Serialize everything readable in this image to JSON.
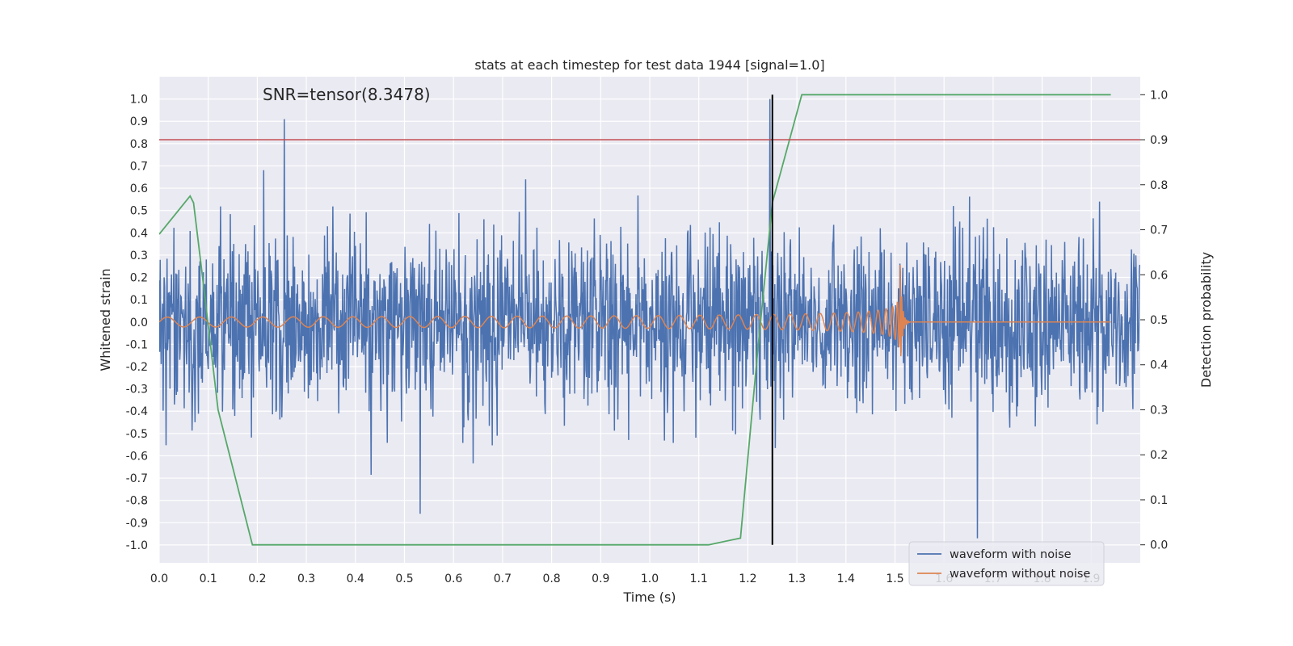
{
  "chart_data": {
    "type": "line",
    "title": "stats at each timestep for test data 1944 [signal=1.0]",
    "xlabel": "Time (s)",
    "ylabel_left": "Whitened strain",
    "ylabel_right": "Detection probability",
    "xlim": [
      0.0,
      2.0
    ],
    "ylim_left": [
      -1.08,
      1.1
    ],
    "ylim_right": [
      -0.04,
      1.04
    ],
    "x_ticks": [
      "0.0",
      "0.1",
      "0.2",
      "0.3",
      "0.4",
      "0.5",
      "0.6",
      "0.7",
      "0.8",
      "0.9",
      "1.0",
      "1.1",
      "1.2",
      "1.3",
      "1.4",
      "1.5",
      "1.6",
      "1.7",
      "1.8",
      "1.9"
    ],
    "y_ticks_left": [
      "1.0",
      "0.9",
      "0.8",
      "0.7",
      "0.6",
      "0.5",
      "0.4",
      "0.3",
      "0.2",
      "0.1",
      "0.0",
      "-0.1",
      "-0.2",
      "-0.3",
      "-0.4",
      "-0.5",
      "-0.6",
      "-0.7",
      "-0.8",
      "-0.9",
      "-1.0"
    ],
    "y_ticks_right": [
      "1.0",
      "0.9",
      "0.8",
      "0.7",
      "0.6",
      "0.5",
      "0.4",
      "0.3",
      "0.2",
      "0.1",
      "0.0"
    ],
    "annotation": "SNR=tensor(8.3478)",
    "threshold": {
      "y_right": 0.9,
      "color": "#c44e52"
    },
    "event_line": {
      "x": 1.25,
      "color": "#000000"
    },
    "legend": {
      "placement": "lower-right",
      "entries": [
        "waveform with noise",
        "waveform without noise"
      ]
    },
    "series": [
      {
        "name": "waveform with noise",
        "axis": "left",
        "color": "#4c72b0",
        "description_note": "noisy whitened strain, roughly uniform spread with occasional peaks",
        "peaks": [
          {
            "x": 0.255,
            "y": 0.91
          },
          {
            "x": 1.245,
            "y": 1.0
          },
          {
            "x": 1.668,
            "y": -0.97
          },
          {
            "x": 0.532,
            "y": -0.86
          }
        ]
      },
      {
        "name": "waveform without noise",
        "axis": "left",
        "color": "#dd8452",
        "chirp": {
          "start": 0.0,
          "merger": 1.51,
          "end": 1.53
        }
      },
      {
        "name": "detection probability",
        "axis": "right",
        "color": "#55a868",
        "x": [
          0.0,
          0.063,
          0.07,
          0.09,
          0.12,
          0.19,
          0.25,
          1.12,
          1.185,
          1.22,
          1.25,
          1.31,
          1.38,
          1.94
        ],
        "y": [
          0.69,
          0.775,
          0.76,
          0.58,
          0.3,
          0.0,
          0.0,
          0.0,
          0.015,
          0.43,
          0.76,
          1.0,
          1.0,
          1.0
        ]
      }
    ]
  }
}
